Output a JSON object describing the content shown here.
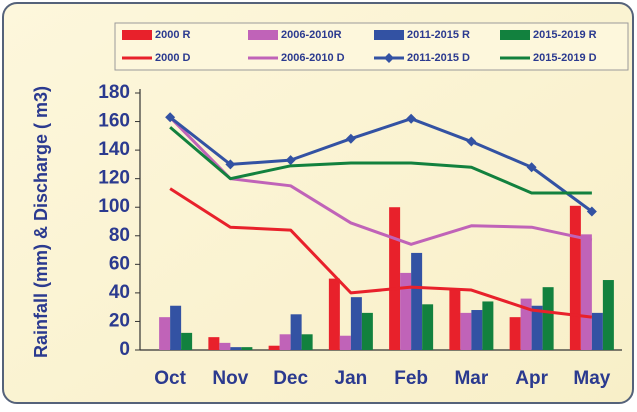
{
  "chart_data": {
    "type": "combo",
    "y_label": "Rainfall (mm) & Discharge ( m3)",
    "categories": [
      "Oct",
      "Nov",
      "Dec",
      "Jan",
      "Feb",
      "Mar",
      "Apr",
      "May"
    ],
    "ylim": [
      0,
      180
    ],
    "yticks": [
      0,
      20,
      40,
      60,
      80,
      100,
      120,
      140,
      160,
      180
    ],
    "series": [
      {
        "name": "2000  R",
        "type": "bar",
        "color": "#e8212b",
        "values": [
          0,
          9,
          3,
          50,
          100,
          42,
          23,
          101
        ]
      },
      {
        "name": "2006-2010R",
        "type": "bar",
        "color": "#c063b8",
        "values": [
          23,
          5,
          11,
          10,
          54,
          26,
          36,
          81
        ]
      },
      {
        "name": "2011-2015 R",
        "type": "bar",
        "color": "#3352a3",
        "values": [
          31,
          2,
          25,
          37,
          68,
          28,
          31,
          26
        ]
      },
      {
        "name": "2015-2019 R",
        "type": "bar",
        "color": "#12813e",
        "values": [
          12,
          2,
          11,
          26,
          32,
          34,
          44,
          49
        ]
      },
      {
        "name": "2000 D",
        "type": "line",
        "color": "#e8212b",
        "values": [
          113,
          86,
          84,
          40,
          44,
          42,
          28,
          23
        ]
      },
      {
        "name": "2006-2010 D",
        "type": "line",
        "color": "#c063b8",
        "values": [
          163,
          120,
          115,
          89,
          74,
          87,
          86,
          77
        ]
      },
      {
        "name": "2011-2015 D",
        "type": "line",
        "color": "#3352a3",
        "marker": "diamond",
        "values": [
          163,
          130,
          133,
          148,
          162,
          146,
          128,
          97
        ]
      },
      {
        "name": "2015-2019 D",
        "type": "line",
        "color": "#12813e",
        "values": [
          156,
          120,
          129,
          131,
          131,
          128,
          110,
          110
        ]
      }
    ]
  }
}
